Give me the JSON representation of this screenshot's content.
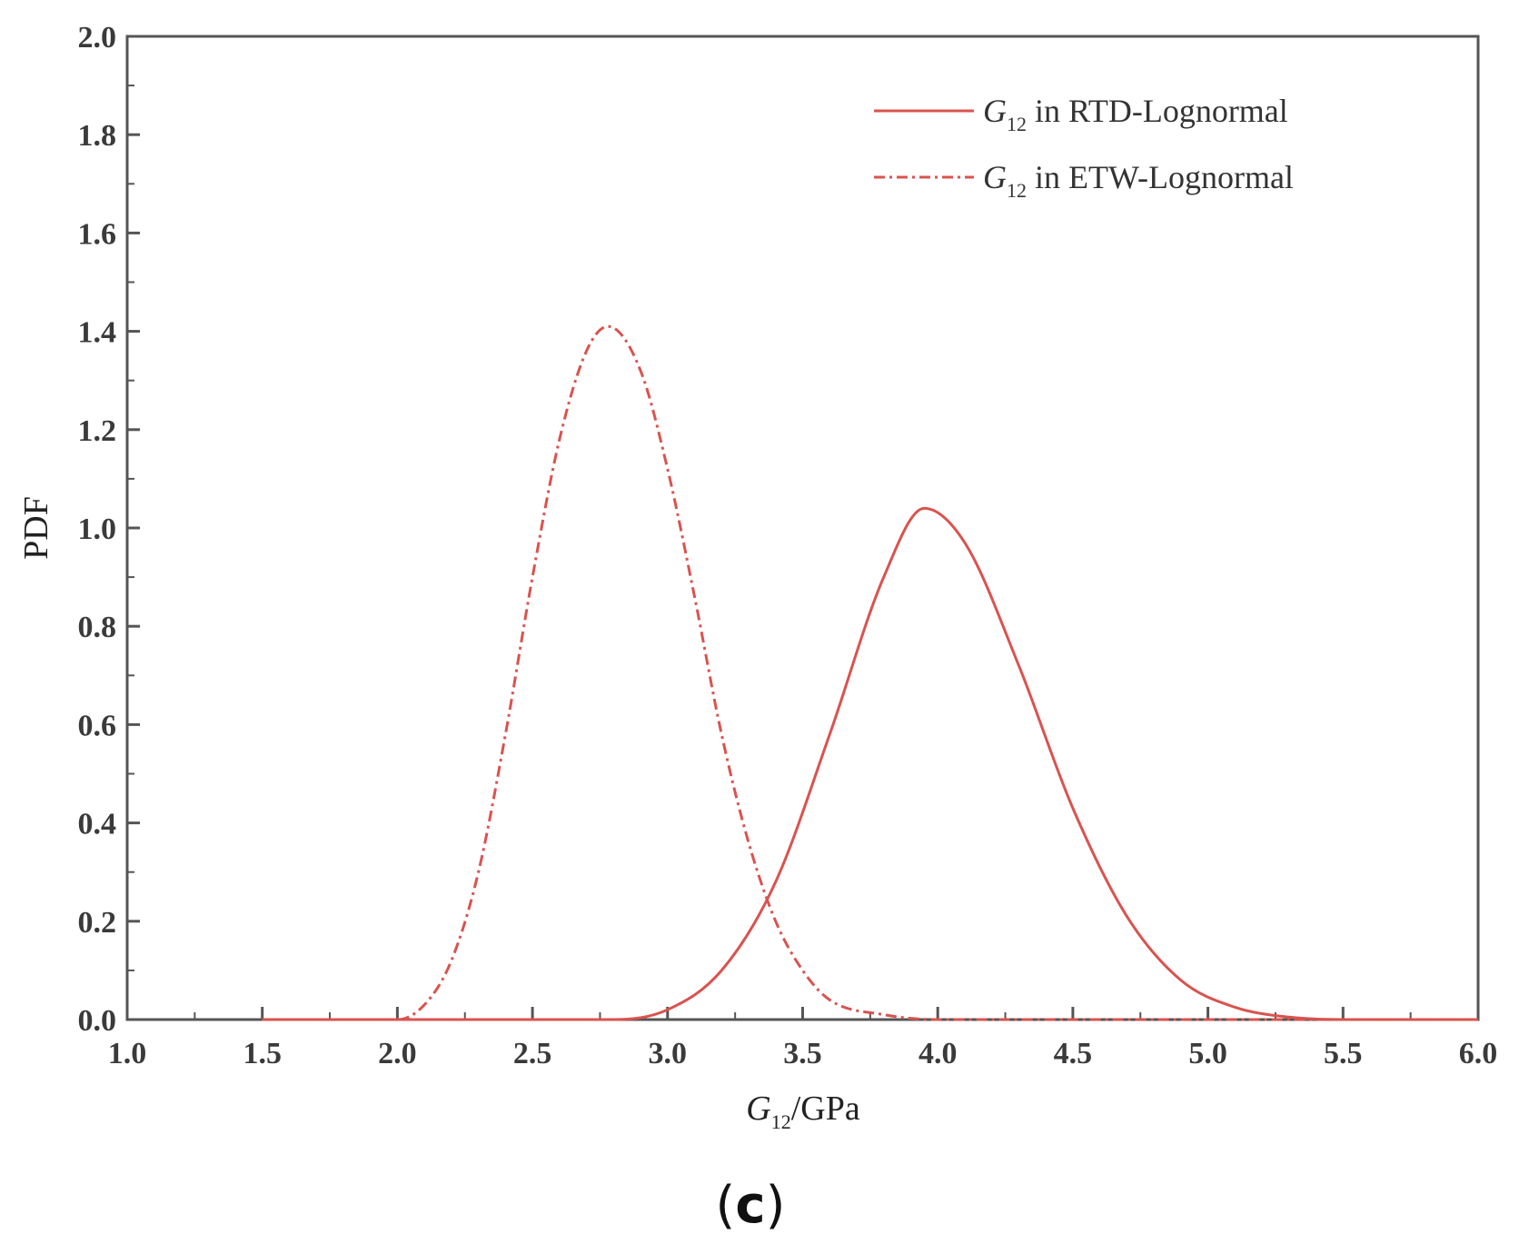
{
  "chart_data": {
    "type": "line",
    "title": "",
    "xlabel": {
      "symbol": "G",
      "subscript": "12",
      "unit": "/GPa"
    },
    "ylabel": "PDF",
    "xlim": [
      1.0,
      6.0
    ],
    "ylim": [
      0.0,
      2.0
    ],
    "xticks": [
      "1.0",
      "1.5",
      "2.0",
      "2.5",
      "3.0",
      "3.5",
      "4.0",
      "4.5",
      "5.0",
      "5.5",
      "6.0"
    ],
    "yticks": [
      "0.0",
      "0.2",
      "0.4",
      "0.6",
      "0.8",
      "1.0",
      "1.2",
      "1.4",
      "1.6",
      "1.8",
      "2.0"
    ],
    "grid": false,
    "legend_position": "top-right",
    "series": [
      {
        "name": {
          "symbol": "G",
          "subscript": "12",
          "rest": " in RTD-Lognormal"
        },
        "style": "solid",
        "color": "#d9534f",
        "x": [
          1.5,
          2.8,
          3.0,
          3.2,
          3.4,
          3.6,
          3.8,
          3.95,
          4.1,
          4.3,
          4.5,
          4.7,
          4.9,
          5.1,
          5.3,
          5.5,
          6.0
        ],
        "y": [
          0.0,
          0.0,
          0.02,
          0.1,
          0.28,
          0.58,
          0.9,
          1.04,
          0.97,
          0.72,
          0.43,
          0.21,
          0.08,
          0.025,
          0.005,
          0.0,
          0.0
        ]
      },
      {
        "name": {
          "symbol": "G",
          "subscript": "12",
          "rest": " in ETW-Lognormal"
        },
        "style": "dash-dot",
        "color": "#d9534f",
        "x": [
          1.5,
          2.0,
          2.1,
          2.2,
          2.3,
          2.4,
          2.5,
          2.6,
          2.7,
          2.78,
          2.9,
          3.0,
          3.1,
          3.2,
          3.3,
          3.4,
          3.5,
          3.6,
          3.8,
          4.0,
          6.0
        ],
        "y": [
          0.0,
          0.0,
          0.03,
          0.12,
          0.3,
          0.58,
          0.9,
          1.18,
          1.36,
          1.41,
          1.32,
          1.12,
          0.86,
          0.58,
          0.36,
          0.2,
          0.1,
          0.04,
          0.01,
          0.0,
          0.0
        ]
      }
    ]
  },
  "panel_label": {
    "open": "(",
    "letter": "c",
    "close": ")"
  }
}
